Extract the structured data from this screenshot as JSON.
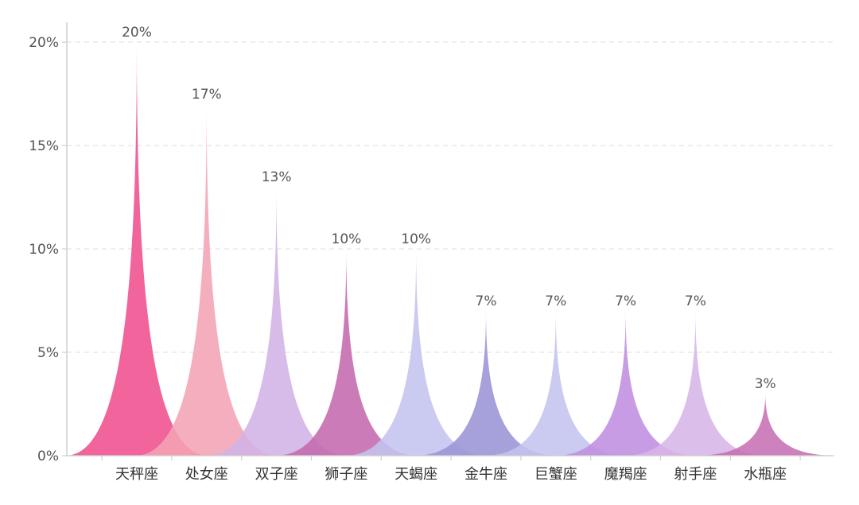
{
  "chart_data": {
    "type": "bar",
    "style": "pictorial-spike",
    "categories": [
      "天秤座",
      "处女座",
      "双子座",
      "狮子座",
      "天蝎座",
      "金牛座",
      "巨蟹座",
      "魔羯座",
      "射手座",
      "水瓶座"
    ],
    "values": [
      20,
      17,
      13,
      10,
      10,
      7,
      7,
      7,
      7,
      3
    ],
    "value_labels": [
      "20%",
      "17%",
      "13%",
      "10%",
      "10%",
      "7%",
      "7%",
      "7%",
      "7%",
      "3%"
    ],
    "colors": [
      "#ef4f8e",
      "#f4a3b4",
      "#d2b3e6",
      "#c46aae",
      "#c4c3ee",
      "#9b94d6",
      "#c4c3ee",
      "#c08ee0",
      "#d7b5e8",
      "#c670b4"
    ],
    "ylim": [
      0,
      20
    ],
    "yticks": [
      0,
      5,
      10,
      15,
      20
    ],
    "ytick_labels": [
      "0%",
      "5%",
      "10%",
      "15%",
      "20%"
    ],
    "grid": true,
    "legend": false
  }
}
